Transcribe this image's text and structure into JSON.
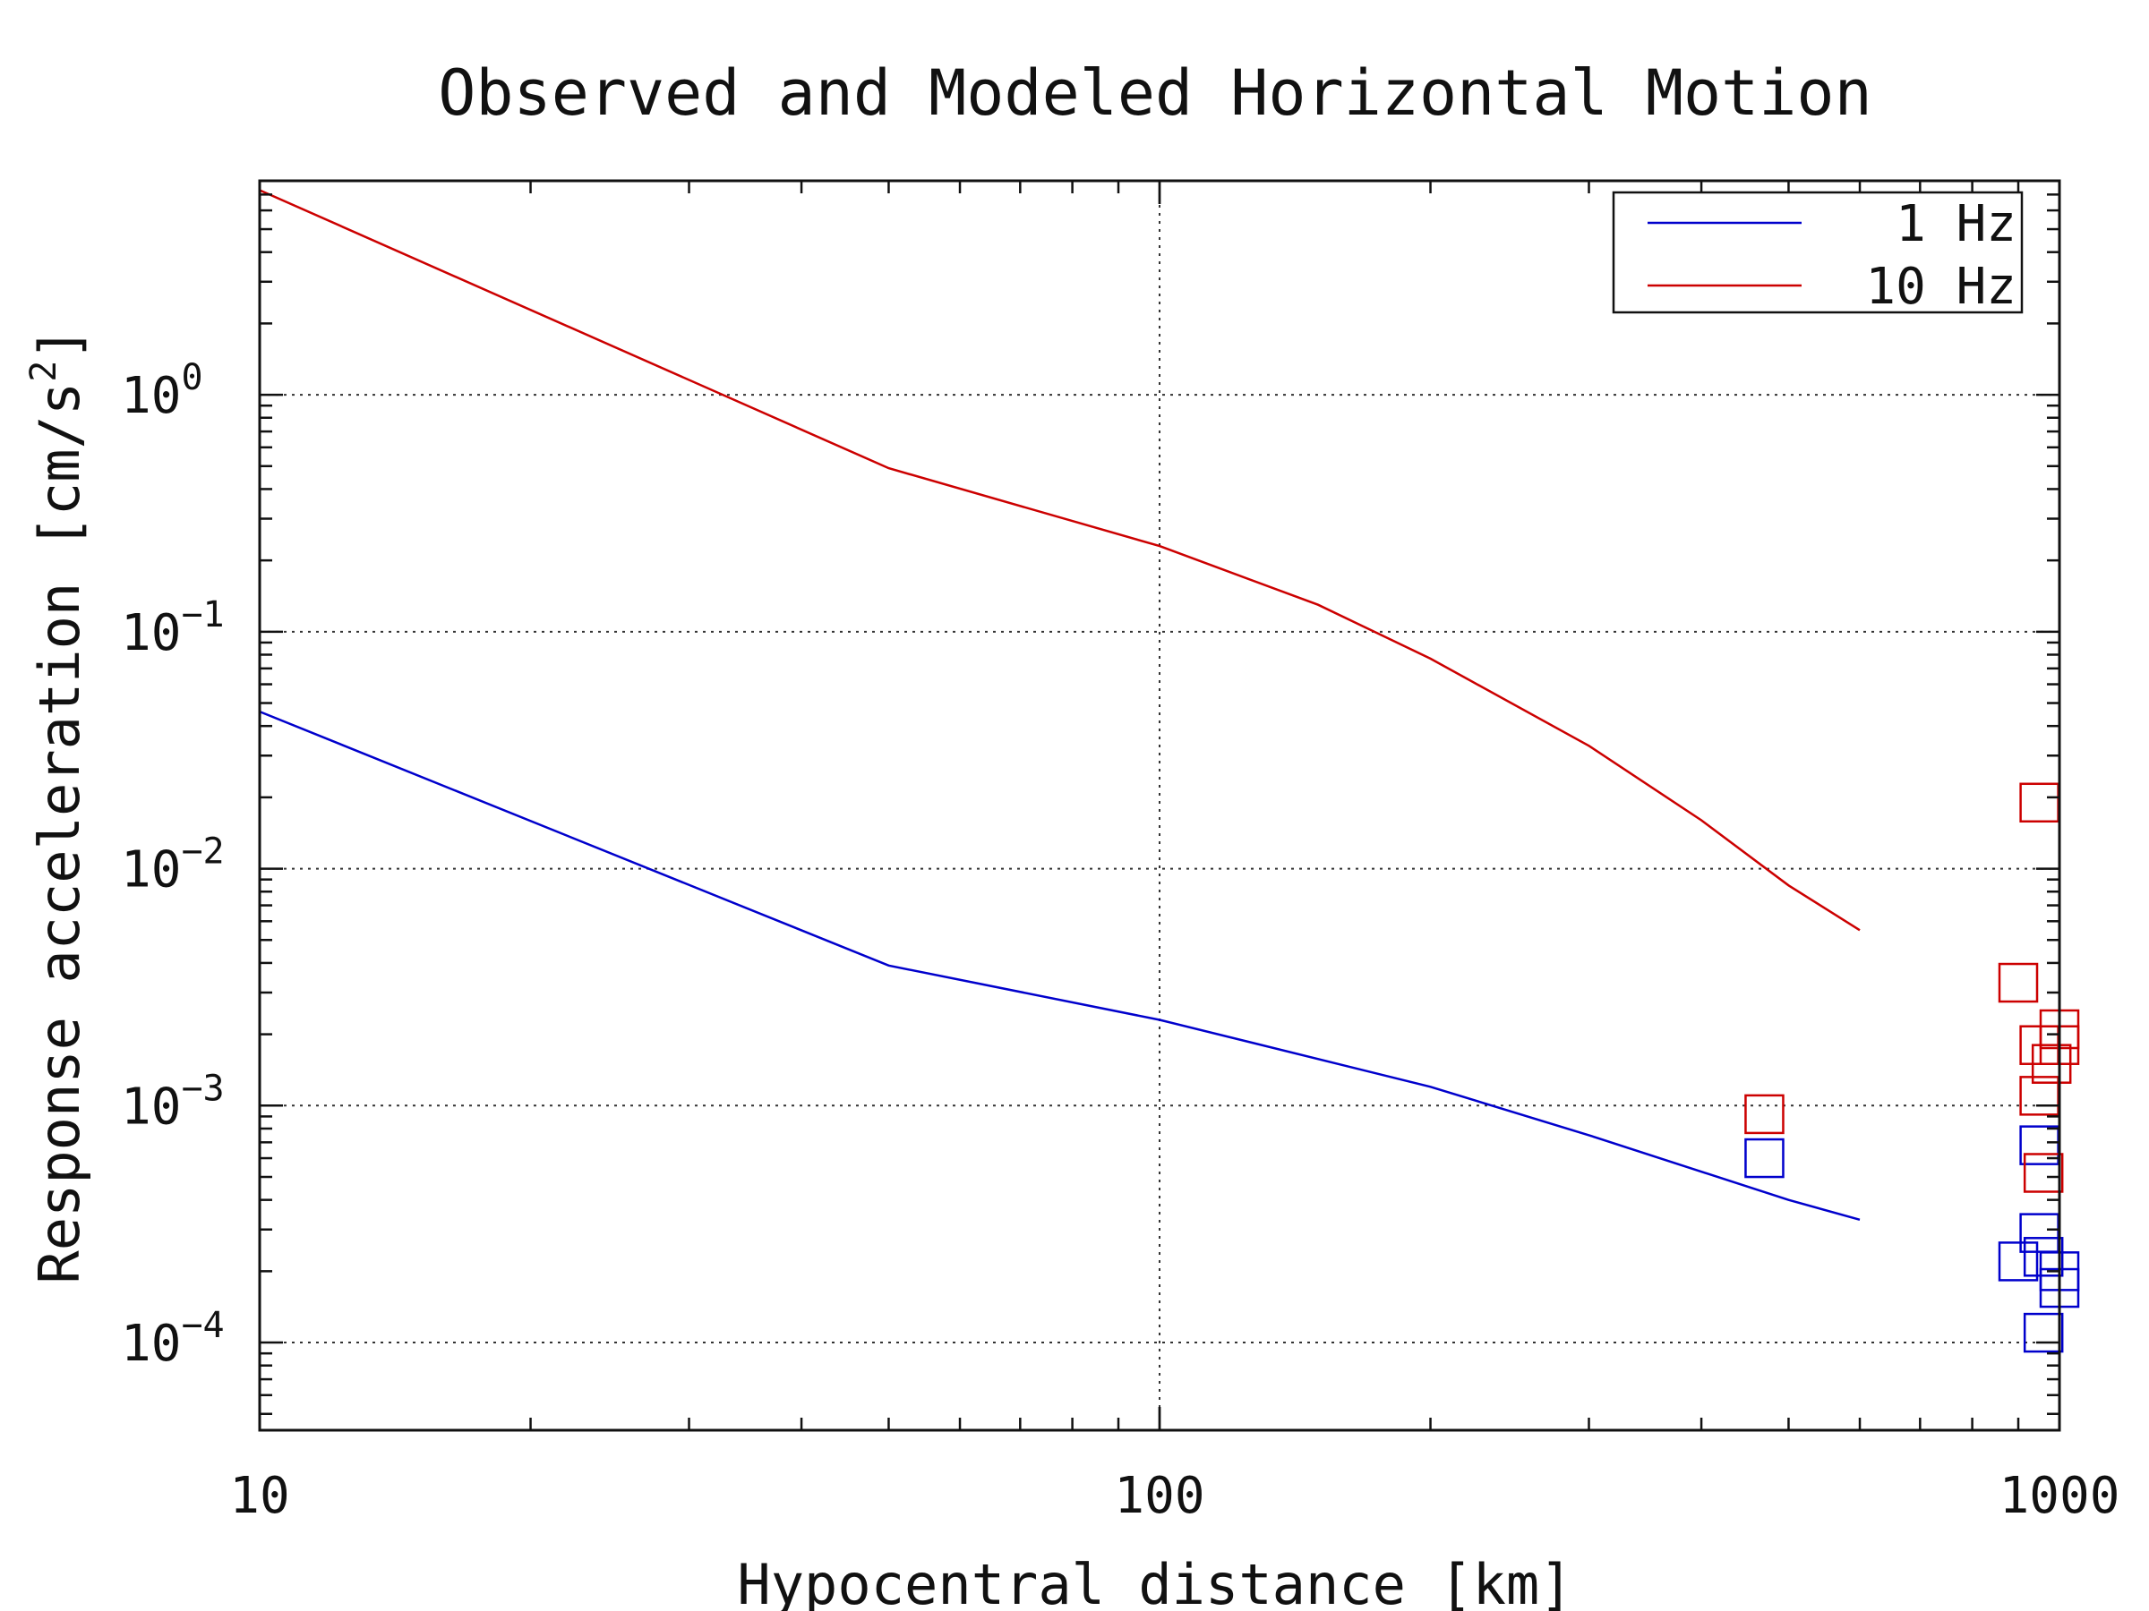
{
  "chart_data": {
    "type": "line",
    "title": "Observed and Modeled Horizontal Motion",
    "xlabel": "Hypocentral distance [km]",
    "ylabel": "Response acceleration [cm/s",
    "ylabel_sup": "2",
    "ylabel_end": "]",
    "x_scale": "log",
    "y_scale": "log",
    "xlim": [
      10,
      1000
    ],
    "ylim": [
      4.266e-05,
      8
    ],
    "grid": true,
    "legend_position": "top-right",
    "x_ticks": [
      {
        "value": 10,
        "label": "10"
      },
      {
        "value": 100,
        "label": "100"
      },
      {
        "value": 1000,
        "label": "1000"
      }
    ],
    "y_ticks": [
      {
        "value": 1,
        "base": "10",
        "exp": "0"
      },
      {
        "value": 0.1,
        "base": "10",
        "exp": "−1"
      },
      {
        "value": 0.01,
        "base": "10",
        "exp": "−2"
      },
      {
        "value": 0.001,
        "base": "10",
        "exp": "−3"
      },
      {
        "value": 0.0001,
        "base": "10",
        "exp": "−4"
      }
    ],
    "series": [
      {
        "name": "1 Hz",
        "color": "#0000cc",
        "x": [
          10,
          50,
          100,
          200,
          300,
          500,
          600
        ],
        "y": [
          0.046,
          0.0039,
          0.0023,
          0.0012,
          0.00075,
          0.0004,
          0.00033
        ]
      },
      {
        "name": "10 Hz",
        "color": "#cc0000",
        "x": [
          10,
          50,
          100,
          150,
          200,
          300,
          400,
          500,
          600
        ],
        "y": [
          7.3,
          0.49,
          0.23,
          0.13,
          0.077,
          0.033,
          0.016,
          0.0085,
          0.0055
        ]
      }
    ],
    "observed": [
      {
        "series": "1 Hz",
        "color": "#0000cc",
        "points": [
          {
            "x": 470,
            "y": 0.0006
          },
          {
            "x": 950,
            "y": 0.00068
          },
          {
            "x": 950,
            "y": 0.00029
          },
          {
            "x": 900,
            "y": 0.00022
          },
          {
            "x": 960,
            "y": 0.00023
          },
          {
            "x": 1000,
            "y": 0.0002
          },
          {
            "x": 1000,
            "y": 0.00017
          },
          {
            "x": 960,
            "y": 0.00011
          }
        ]
      },
      {
        "series": "10 Hz",
        "color": "#cc0000",
        "points": [
          {
            "x": 470,
            "y": 0.00092
          },
          {
            "x": 950,
            "y": 0.019
          },
          {
            "x": 900,
            "y": 0.0033
          },
          {
            "x": 950,
            "y": 0.0018
          },
          {
            "x": 1000,
            "y": 0.0021
          },
          {
            "x": 1000,
            "y": 0.0018
          },
          {
            "x": 980,
            "y": 0.0015
          },
          {
            "x": 950,
            "y": 0.0011
          },
          {
            "x": 960,
            "y": 0.00052
          }
        ]
      }
    ]
  }
}
